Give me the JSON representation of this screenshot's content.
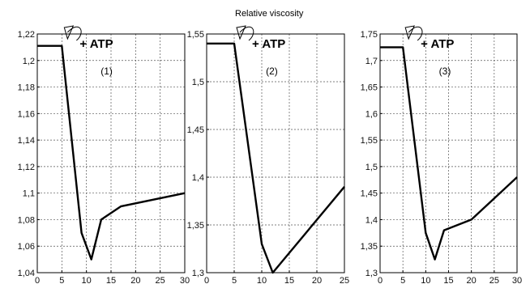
{
  "header": {
    "title": "Relative viscosity"
  },
  "chart_data": [
    {
      "type": "line",
      "panel_label": "(1)",
      "annotation": "+ ATP",
      "annotation_x": 5,
      "x": [
        0,
        5,
        9,
        11,
        13,
        17,
        30
      ],
      "series": [
        {
          "values": [
            1.211,
            1.211,
            1.07,
            1.05,
            1.08,
            1.09,
            1.1
          ]
        }
      ],
      "xlim": [
        0,
        30
      ],
      "ylim": [
        1.04,
        1.22
      ],
      "xticks": [
        "0",
        "5",
        "10",
        "15",
        "20",
        "25",
        "30"
      ],
      "yticks": [
        "1,04",
        "1,06",
        "1,08",
        "1,1",
        "1,12",
        "1,14",
        "1,16",
        "1,18",
        "1,2",
        "1,22"
      ],
      "grid": true
    },
    {
      "type": "line",
      "panel_label": "(2)",
      "annotation": "+ ATP",
      "annotation_x": 5,
      "x": [
        0,
        5,
        10,
        12,
        25
      ],
      "series": [
        {
          "values": [
            1.54,
            1.54,
            1.33,
            1.3,
            1.39
          ]
        }
      ],
      "xlim": [
        0,
        25
      ],
      "ylim": [
        1.3,
        1.55
      ],
      "xticks": [
        "0",
        "5",
        "10",
        "15",
        "20",
        "25"
      ],
      "yticks": [
        "1,3",
        "1,35",
        "1,4",
        "1,45",
        "1,5",
        "1,55"
      ],
      "grid": true
    },
    {
      "type": "line",
      "panel_label": "(3)",
      "annotation": "+ ATP",
      "annotation_x": 5,
      "x": [
        0,
        5,
        10,
        12,
        14,
        20,
        30
      ],
      "series": [
        {
          "values": [
            1.725,
            1.725,
            1.375,
            1.325,
            1.38,
            1.4,
            1.48
          ]
        }
      ],
      "xlim": [
        0,
        30
      ],
      "ylim": [
        1.3,
        1.75
      ],
      "xticks": [
        "0",
        "5",
        "10",
        "15",
        "20",
        "25",
        "30"
      ],
      "yticks": [
        "1,3",
        "1,35",
        "1,4",
        "1,45",
        "1,5",
        "1,55",
        "1,6",
        "1,65",
        "1,7",
        "1,75"
      ],
      "grid": true
    }
  ]
}
